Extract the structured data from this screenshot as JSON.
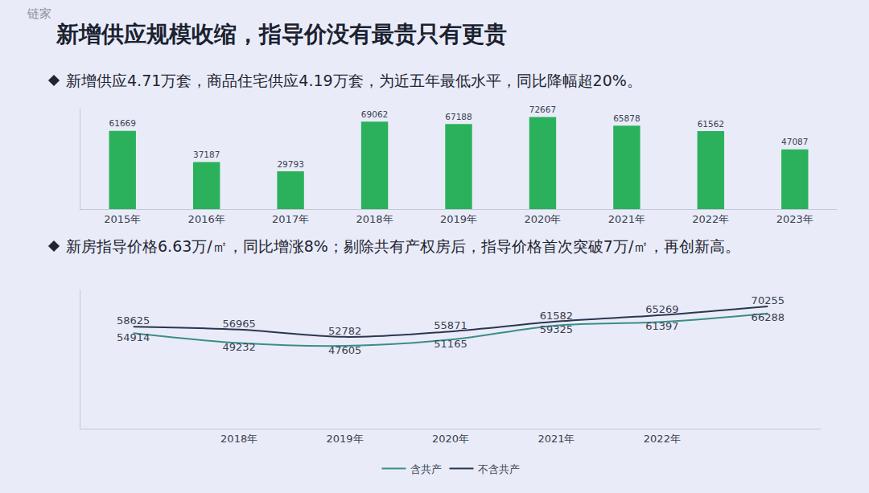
{
  "logo": "链家",
  "title": "新增供应规模收缩，指导价没有最贵只有更贵",
  "bullets": [
    "新增供应4.71万套，商品住宅供应4.19万套，为近五年最低水平，同比降幅超20%。",
    "新房指导价格6.63万/㎡，同比增涨8%；剔除共有产权房后，指导价格首次突破7万/㎡，再创新高。"
  ],
  "chart_data": [
    {
      "type": "bar",
      "categories": [
        "2015年",
        "2016年",
        "2017年",
        "2018年",
        "2019年",
        "2020年",
        "2021年",
        "2022年",
        "2023年"
      ],
      "values": [
        61669,
        37187,
        29793,
        69062,
        67188,
        72667,
        65878,
        61562,
        47087
      ],
      "color": "#2bb15b",
      "ylim": [
        0,
        80000
      ],
      "yticks": [],
      "data_labels": true,
      "tick_labels": "x",
      "grid": false
    },
    {
      "type": "line",
      "categories": [
        null,
        "2018年",
        "2019年",
        "2020年",
        "2021年",
        "2022年",
        null
      ],
      "series": [
        {
          "name": "含共产",
          "color": "#3b8d88",
          "values": [
            54914,
            49232,
            47605,
            51165,
            59325,
            61397,
            66288
          ]
        },
        {
          "name": "不含共产",
          "color": "#2b3650",
          "values": [
            58625,
            56965,
            52782,
            55871,
            61582,
            65269,
            70255
          ]
        }
      ],
      "ylim": [
        0,
        80000
      ],
      "yticks": [],
      "data_labels": true,
      "tick_labels": "x",
      "legend": "bottom",
      "grid": false
    }
  ]
}
